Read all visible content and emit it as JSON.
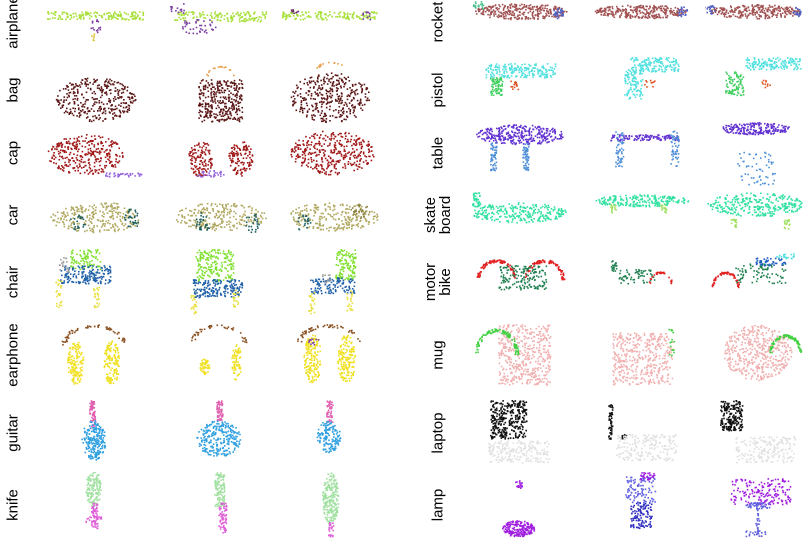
{
  "figure": {
    "left_column": [
      {
        "label": [
          "airplane"
        ],
        "key": "airplane"
      },
      {
        "label": [
          "bag"
        ],
        "key": "bag"
      },
      {
        "label": [
          "cap"
        ],
        "key": "cap"
      },
      {
        "label": [
          "car"
        ],
        "key": "car"
      },
      {
        "label": [
          "chair"
        ],
        "key": "chair"
      },
      {
        "label": [
          "earphone"
        ],
        "key": "earphone"
      },
      {
        "label": [
          "guitar"
        ],
        "key": "guitar"
      },
      {
        "label": [
          "knife"
        ],
        "key": "knife"
      }
    ],
    "right_column": [
      {
        "label": [
          "rocket"
        ],
        "key": "rocket"
      },
      {
        "label": [
          "pistol"
        ],
        "key": "pistol"
      },
      {
        "label": [
          "table"
        ],
        "key": "table"
      },
      {
        "label": [
          "skate",
          "board"
        ],
        "key": "skateboard"
      },
      {
        "label": [
          "motor",
          "bike"
        ],
        "key": "motorbike"
      },
      {
        "label": [
          "mug"
        ],
        "key": "mug"
      },
      {
        "label": [
          "laptop"
        ],
        "key": "laptop"
      },
      {
        "label": [
          "lamp"
        ],
        "key": "lamp"
      }
    ],
    "part_colors": {
      "airplane": [
        "#a8e03a",
        "#7a3aa0",
        "#6a2a6a",
        "#e0c030"
      ],
      "bag": [
        "#5a1515",
        "#e8a050"
      ],
      "cap": [
        "#a01818",
        "#9966dd"
      ],
      "car": [
        "#b0a860",
        "#1f5f5f",
        "#7a4a7a",
        "#8a8040"
      ],
      "chair": [
        "#80e030",
        "#2060a8",
        "#e8e040",
        "#a0a0a0"
      ],
      "earphone": [
        "#f0e020",
        "#8a5020",
        "#8040a0"
      ],
      "guitar": [
        "#30a0e0",
        "#e060b0"
      ],
      "knife": [
        "#a0e0a0",
        "#e060d8"
      ],
      "rocket": [
        "#a05050",
        "#5060c0",
        "#50c090"
      ],
      "pistol": [
        "#50e0e0",
        "#40d060",
        "#e05020"
      ],
      "table": [
        "#6030d0",
        "#5090d8"
      ],
      "skateboard": [
        "#30e0a0",
        "#a0e060"
      ],
      "motorbike": [
        "#208050",
        "#e02020",
        "#2060c0",
        "#50e0e0"
      ],
      "mug": [
        "#f0b0b0",
        "#40d040"
      ],
      "laptop": [
        "#101010",
        "#e0e0e0"
      ],
      "lamp": [
        "#a020e0",
        "#6060e0",
        "#3030c0"
      ]
    }
  }
}
